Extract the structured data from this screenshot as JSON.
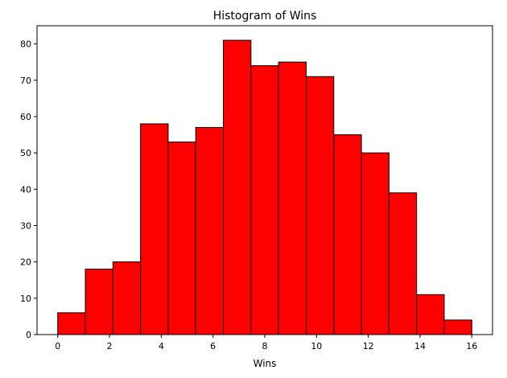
{
  "chart_data": {
    "type": "bar",
    "title": "Histogram of Wins",
    "xlabel": "Wins",
    "ylabel": "",
    "bin_edges": [
      0,
      1.0667,
      2.1333,
      3.2,
      4.2667,
      5.3333,
      6.4,
      7.4667,
      8.5333,
      9.6,
      10.6667,
      11.7333,
      12.8,
      13.8667,
      14.9333,
      16
    ],
    "values": [
      6,
      18,
      20,
      58,
      53,
      57,
      81,
      74,
      75,
      71,
      55,
      50,
      39,
      11,
      4
    ],
    "xlim": [
      -0.8,
      16.8
    ],
    "ylim": [
      0,
      85
    ],
    "xticks": [
      0,
      2,
      4,
      6,
      8,
      10,
      12,
      14,
      16
    ],
    "yticks": [
      0,
      10,
      20,
      30,
      40,
      50,
      60,
      70,
      80
    ],
    "bar_color": "#ff0000",
    "edge_color": "#000000",
    "grid": false,
    "legend": "none"
  }
}
